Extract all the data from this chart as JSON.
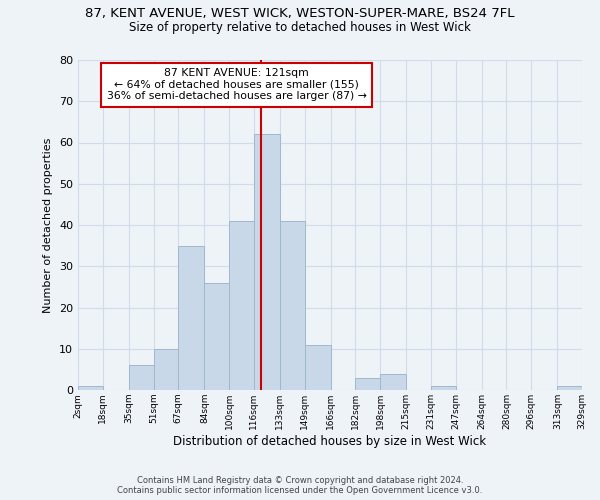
{
  "title_line1": "87, KENT AVENUE, WEST WICK, WESTON-SUPER-MARE, BS24 7FL",
  "title_line2": "Size of property relative to detached houses in West Wick",
  "xlabel": "Distribution of detached houses by size in West Wick",
  "ylabel": "Number of detached properties",
  "bin_edges": [
    2,
    18,
    35,
    51,
    67,
    84,
    100,
    116,
    133,
    149,
    166,
    182,
    198,
    215,
    231,
    247,
    264,
    280,
    296,
    313,
    329
  ],
  "bin_labels": [
    "2sqm",
    "18sqm",
    "35sqm",
    "51sqm",
    "67sqm",
    "84sqm",
    "100sqm",
    "116sqm",
    "133sqm",
    "149sqm",
    "166sqm",
    "182sqm",
    "198sqm",
    "215sqm",
    "231sqm",
    "247sqm",
    "264sqm",
    "280sqm",
    "296sqm",
    "313sqm",
    "329sqm"
  ],
  "counts": [
    1,
    0,
    6,
    10,
    35,
    26,
    41,
    62,
    41,
    11,
    0,
    3,
    4,
    0,
    1,
    0,
    0,
    0,
    0,
    1
  ],
  "bar_color": "#c8d8e8",
  "bar_edge_color": "#a0b8cc",
  "reference_line_x": 121,
  "reference_line_color": "#cc0000",
  "annotation_title": "87 KENT AVENUE: 121sqm",
  "annotation_line2": "← 64% of detached houses are smaller (155)",
  "annotation_line3": "36% of semi-detached houses are larger (87) →",
  "annotation_box_edge_color": "#cc0000",
  "annotation_box_face_color": "#ffffff",
  "ylim": [
    0,
    80
  ],
  "yticks": [
    0,
    10,
    20,
    30,
    40,
    50,
    60,
    70,
    80
  ],
  "grid_color": "#d0dce8",
  "background_color": "#eef3f8",
  "footer_line1": "Contains HM Land Registry data © Crown copyright and database right 2024.",
  "footer_line2": "Contains public sector information licensed under the Open Government Licence v3.0."
}
